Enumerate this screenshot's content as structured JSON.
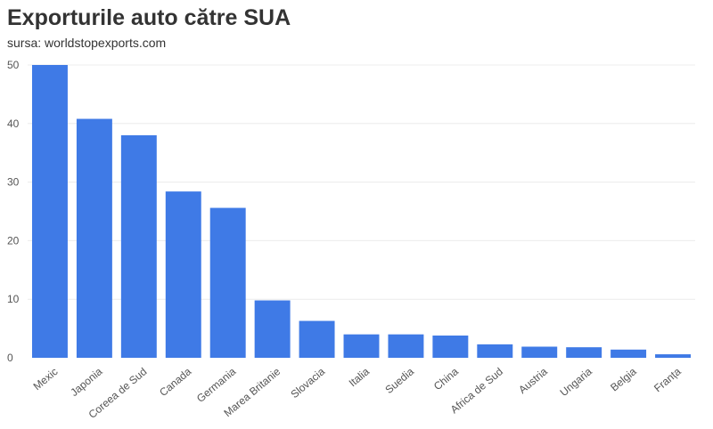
{
  "chart_data": {
    "type": "bar",
    "title": "Exporturile auto către SUA",
    "subtitle": "sursa: worldstopexports.com",
    "xlabel": "",
    "ylabel": "",
    "ylim": [
      0,
      50
    ],
    "yticks": [
      0,
      10,
      20,
      30,
      40,
      50
    ],
    "grid": true,
    "bar_color": "#3f7ae6",
    "gridline_color": "#ececec",
    "categories": [
      "Mexic",
      "Japonia",
      "Coreea de Sud",
      "Canada",
      "Germania",
      "Marea Britanie",
      "Slovacia",
      "Italia",
      "Suedia",
      "China",
      "Africa de Sud",
      "Austria",
      "Ungaria",
      "Belgia",
      "Franța"
    ],
    "values": [
      50.0,
      40.8,
      38.0,
      28.4,
      25.6,
      9.8,
      6.3,
      4.0,
      4.0,
      3.8,
      2.3,
      1.9,
      1.8,
      1.4,
      0.6
    ]
  }
}
